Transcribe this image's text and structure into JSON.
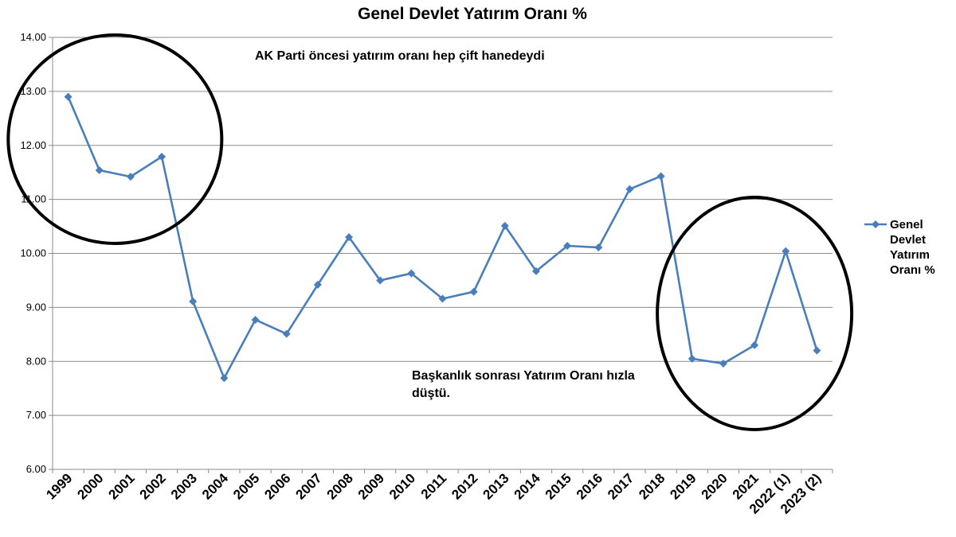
{
  "chart_data": {
    "type": "line",
    "title": "Genel Devlet Yatırım Oranı %",
    "xlabel": "",
    "ylabel": "",
    "ylim": [
      6.0,
      14.0
    ],
    "yticks": [
      "6.00",
      "7.00",
      "8.00",
      "9.00",
      "10.00",
      "11.00",
      "12.00",
      "13.00",
      "14.00"
    ],
    "grid": true,
    "legend_position": "right",
    "categories": [
      "1999",
      "2000",
      "2001",
      "2002",
      "2003",
      "2004",
      "2005",
      "2006",
      "2007",
      "2008",
      "2009",
      "2010",
      "2011",
      "2012",
      "2013",
      "2014",
      "2015",
      "2016",
      "2017",
      "2018",
      "2019",
      "2020",
      "2021",
      "2022 (1)",
      "2023 (2)"
    ],
    "series": [
      {
        "name": "Genel Devlet Yatırım Oranı %",
        "legend_lines": [
          "Genel",
          "Devlet",
          "Yatırım",
          "Oranı %"
        ],
        "color": "#4a7ebb",
        "values": [
          12.9,
          11.54,
          11.42,
          11.79,
          9.11,
          7.69,
          8.77,
          8.51,
          9.42,
          10.3,
          9.5,
          9.63,
          9.16,
          9.29,
          10.51,
          9.67,
          10.14,
          10.11,
          11.19,
          11.43,
          8.05,
          7.96,
          8.3,
          10.04,
          8.2
        ]
      }
    ],
    "annotations": [
      {
        "name": "annotation-pre-ak-parti",
        "lines": [
          "AK Parti öncesi yatırım oranı hep çift hanedeydi"
        ]
      },
      {
        "name": "annotation-post-presidency",
        "lines": [
          "Başkanlık sonrası Yatırım Oranı hızla",
          "düştü."
        ]
      }
    ],
    "highlight_circles": [
      {
        "name": "highlight-circle-early-years",
        "categories": [
          "1999",
          "2002"
        ]
      },
      {
        "name": "highlight-circle-recent-years",
        "categories": [
          "2019",
          "2023 (2)"
        ]
      }
    ]
  }
}
